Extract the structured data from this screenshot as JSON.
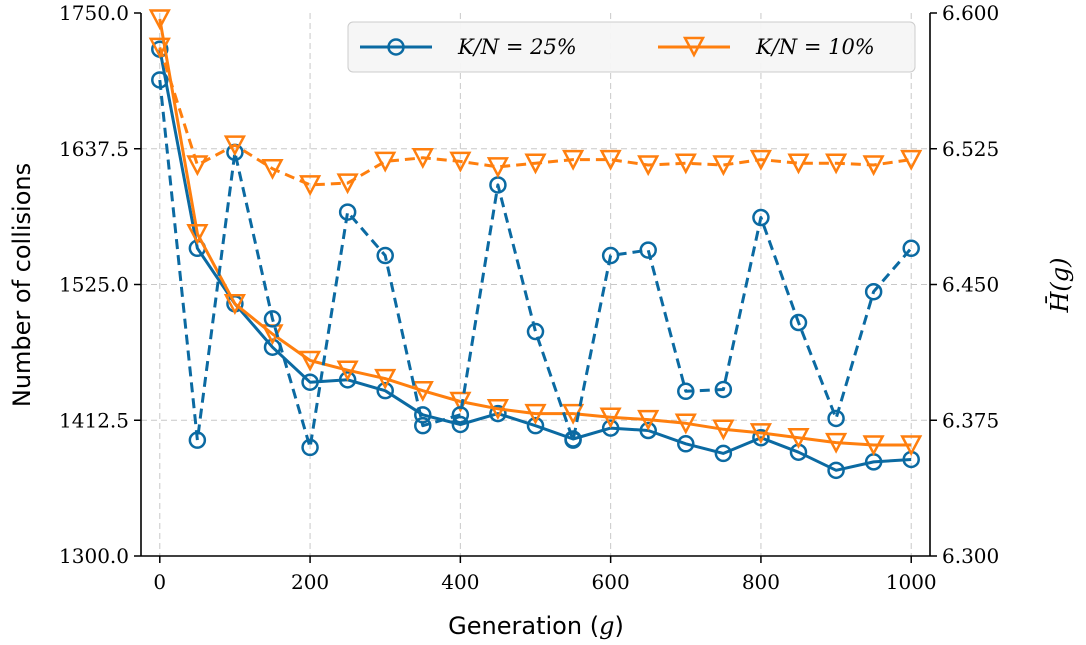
{
  "chart_data": {
    "type": "line",
    "xlabel": "Generation (g)",
    "ylabel": "Number of collisions",
    "y2label": "H̄(g)",
    "xlim": [
      -25,
      1025
    ],
    "ylim": [
      1300.0,
      1750.0
    ],
    "y2lim": [
      6.3,
      6.6
    ],
    "x_ticks": [
      "0",
      "200",
      "400",
      "600",
      "800",
      "1000"
    ],
    "y_ticks": [
      "1300.0",
      "1412.5",
      "1525.0",
      "1637.5",
      "1750.0"
    ],
    "y2_ticks": [
      "6.300",
      "6.375",
      "6.450",
      "6.525",
      "6.600"
    ],
    "grid": true,
    "legend_position": "top-right",
    "series": [
      {
        "name": "K/N = 25%",
        "color": "#0b6aa2",
        "marker": "circle",
        "axis": "left",
        "style": "solid",
        "x": [
          0,
          50,
          100,
          150,
          200,
          250,
          300,
          350,
          400,
          450,
          500,
          550,
          600,
          650,
          700,
          750,
          800,
          850,
          900,
          950,
          1000
        ],
        "values": [
          1720,
          1555,
          1509,
          1473,
          1444,
          1446,
          1437,
          1417,
          1409,
          1418,
          1408,
          1397,
          1406,
          1404,
          1393,
          1385,
          1398,
          1386,
          1371,
          1378,
          1380
        ]
      },
      {
        "name": "K/N = 10%",
        "color": "#ff7f0e",
        "marker": "triangle-down",
        "axis": "left",
        "style": "solid",
        "x": [
          0,
          50,
          100,
          150,
          200,
          250,
          300,
          350,
          400,
          450,
          500,
          550,
          600,
          650,
          700,
          750,
          800,
          850,
          900,
          950,
          1000
        ],
        "values": [
          1745,
          1567,
          1509,
          1484,
          1462,
          1454,
          1447,
          1437,
          1428,
          1422,
          1418,
          1418,
          1415,
          1413,
          1410,
          1405,
          1402,
          1398,
          1394,
          1392,
          1392
        ]
      },
      {
        "name": "K/N = 25%",
        "color": "#0b6aa2",
        "marker": "circle",
        "axis": "right",
        "style": "dashed",
        "x": [
          0,
          50,
          100,
          150,
          200,
          250,
          300,
          350,
          400,
          450,
          500,
          550,
          600,
          650,
          700,
          750,
          800,
          850,
          900,
          950,
          1000
        ],
        "values": [
          6.563,
          6.364,
          6.523,
          6.431,
          6.36,
          6.49,
          6.466,
          6.372,
          6.378,
          6.505,
          6.424,
          6.364,
          6.466,
          6.469,
          6.391,
          6.392,
          6.487,
          6.429,
          6.376,
          6.446,
          6.47
        ]
      },
      {
        "name": "K/N = 10%",
        "color": "#ff7f0e",
        "marker": "triangle-down",
        "axis": "right",
        "style": "dashed",
        "x": [
          0,
          50,
          100,
          150,
          200,
          250,
          300,
          350,
          400,
          450,
          500,
          550,
          600,
          650,
          700,
          750,
          800,
          850,
          900,
          950,
          1000
        ],
        "values": [
          6.581,
          6.516,
          6.527,
          6.514,
          6.505,
          6.506,
          6.518,
          6.52,
          6.518,
          6.515,
          6.517,
          6.519,
          6.519,
          6.516,
          6.517,
          6.516,
          6.519,
          6.517,
          6.517,
          6.516,
          6.519
        ]
      }
    ]
  }
}
